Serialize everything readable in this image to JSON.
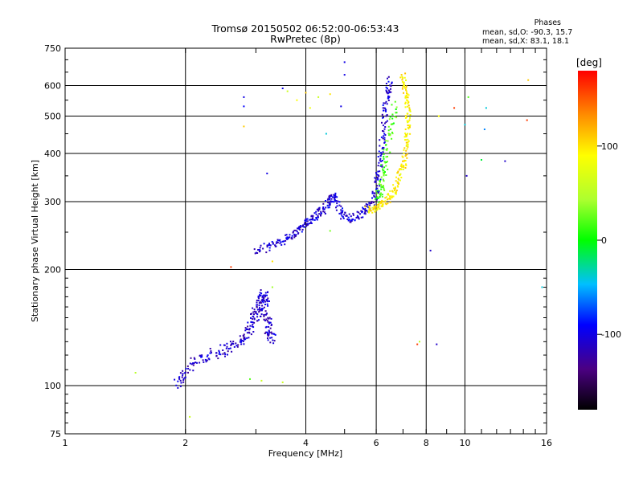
{
  "chart_data": {
    "type": "scatter",
    "title": "Tromsø 20150502 06:52:00-06:53:43",
    "subtitle": "RwPretec (8p)",
    "xlabel": "Frequency [MHz]",
    "ylabel": "Stationary phase Virtual Height [km]",
    "xscale": "log",
    "yscale": "log",
    "xlim": [
      1,
      16
    ],
    "ylim": [
      75,
      750
    ],
    "xticks": [
      1,
      2,
      4,
      6,
      8,
      10,
      16
    ],
    "xtick_labels": [
      "1",
      "2",
      "4",
      "6",
      "8",
      "10",
      "16"
    ],
    "yticks": [
      75,
      100,
      200,
      300,
      400,
      500,
      600,
      750
    ],
    "ytick_labels": [
      "75",
      "100",
      "200",
      "300",
      "400",
      "500",
      "600",
      "750"
    ],
    "grid": true,
    "legend": {
      "title": "Phases",
      "lines": [
        "mean, sd,O: -90.3, 15.7",
        "mean, sd,X:  83.1, 18.1"
      ],
      "placement": "top-right"
    },
    "colorbar": {
      "label": "[deg]",
      "range": [
        -180,
        180
      ],
      "ticks": [
        -100,
        0,
        100
      ],
      "tick_labels": [
        "-100",
        "0",
        "100"
      ],
      "colormap": "rainbow"
    },
    "series": [
      {
        "trace": [
          [
            1.9,
            100
          ],
          [
            2.0,
            110
          ],
          [
            2.2,
            118
          ],
          [
            2.4,
            122
          ],
          [
            2.6,
            126
          ],
          [
            2.8,
            132
          ],
          [
            2.9,
            142
          ],
          [
            3.0,
            152
          ],
          [
            3.05,
            160
          ],
          [
            3.1,
            168
          ],
          [
            3.15,
            172
          ],
          [
            3.2,
            150
          ],
          [
            3.25,
            140
          ],
          [
            3.3,
            130
          ]
        ],
        "phase": -110,
        "spread": 0.05
      },
      {
        "trace": [
          [
            3.0,
            222
          ],
          [
            3.3,
            232
          ],
          [
            3.6,
            240
          ],
          [
            3.8,
            250
          ],
          [
            4.0,
            262
          ],
          [
            4.2,
            275
          ],
          [
            4.4,
            285
          ],
          [
            4.6,
            300
          ],
          [
            4.7,
            310
          ],
          [
            4.9,
            280
          ],
          [
            5.2,
            270
          ],
          [
            5.5,
            280
          ],
          [
            5.8,
            292
          ],
          [
            6.0,
            320
          ],
          [
            6.1,
            360
          ],
          [
            6.2,
            420
          ],
          [
            6.3,
            500
          ],
          [
            6.4,
            570
          ],
          [
            6.5,
            620
          ]
        ],
        "phase": -105,
        "spread": 0.035
      },
      {
        "trace": [
          [
            5.7,
            285
          ],
          [
            6.0,
            288
          ],
          [
            6.3,
            298
          ],
          [
            6.6,
            315
          ],
          [
            6.8,
            340
          ],
          [
            7.0,
            370
          ],
          [
            7.1,
            410
          ],
          [
            7.2,
            460
          ],
          [
            7.2,
            520
          ],
          [
            7.1,
            580
          ],
          [
            7.0,
            640
          ]
        ],
        "phase": 95,
        "spread": 0.03
      },
      {
        "trace": [
          [
            6.0,
            300
          ],
          [
            6.2,
            330
          ],
          [
            6.3,
            380
          ],
          [
            6.5,
            450
          ],
          [
            6.7,
            540
          ]
        ],
        "phase": 20,
        "spread": 0.04
      }
    ],
    "scatter_points": [
      [
        1.5,
        108,
        50
      ],
      [
        2.05,
        83,
        60
      ],
      [
        2.6,
        203,
        160
      ],
      [
        2.8,
        470,
        110
      ],
      [
        2.8,
        560,
        -100
      ],
      [
        2.8,
        530,
        -90
      ],
      [
        3.2,
        355,
        -100
      ],
      [
        3.3,
        210,
        100
      ],
      [
        3.3,
        180,
        40
      ],
      [
        3.5,
        102,
        60
      ],
      [
        3.5,
        590,
        -100
      ],
      [
        3.6,
        580,
        60
      ],
      [
        3.8,
        550,
        90
      ],
      [
        4.0,
        575,
        110
      ],
      [
        4.1,
        525,
        80
      ],
      [
        4.3,
        560,
        60
      ],
      [
        4.5,
        450,
        -40
      ],
      [
        4.6,
        570,
        100
      ],
      [
        4.9,
        530,
        -100
      ],
      [
        5.0,
        690,
        -100
      ],
      [
        5.0,
        640,
        -100
      ],
      [
        4.6,
        252,
        30
      ],
      [
        7.6,
        128,
        160
      ],
      [
        7.7,
        130,
        50
      ],
      [
        8.2,
        224,
        -110
      ],
      [
        8.5,
        128,
        -110
      ],
      [
        8.6,
        500,
        90
      ],
      [
        9.4,
        525,
        160
      ],
      [
        10.0,
        475,
        -40
      ],
      [
        10.1,
        350,
        -110
      ],
      [
        10.2,
        560,
        20
      ],
      [
        11.0,
        385,
        -10
      ],
      [
        11.2,
        462,
        -60
      ],
      [
        11.3,
        525,
        -40
      ],
      [
        12.6,
        382,
        -110
      ],
      [
        14.3,
        488,
        160
      ],
      [
        14.4,
        620,
        110
      ],
      [
        15.6,
        180,
        -40
      ],
      [
        2.9,
        104,
        20
      ],
      [
        3.1,
        103,
        60
      ]
    ]
  }
}
